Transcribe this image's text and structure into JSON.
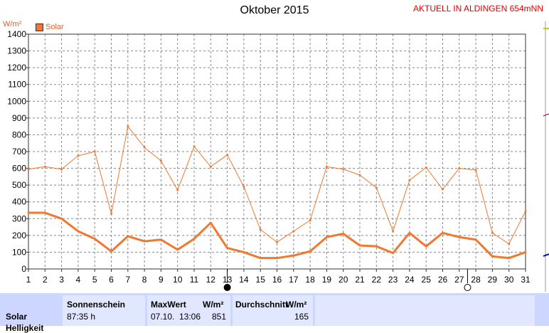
{
  "header": {
    "title": "Oktober 2015",
    "station": "AKTUELL IN ALDINGEN 654mNN"
  },
  "colors": {
    "series": "#f07830",
    "grid": "#888888",
    "station_text": "#e00000",
    "stats_bg": "#ccd6ff",
    "stats_cell": "#e0e7ff"
  },
  "chart_data": {
    "type": "line",
    "unit_label": "W/m²",
    "legend": [
      "Solar"
    ],
    "ylim": [
      0,
      1400
    ],
    "yticks": [
      0,
      100,
      200,
      300,
      400,
      500,
      600,
      700,
      800,
      900,
      1000,
      1100,
      1200,
      1300,
      1400
    ],
    "x": [
      1,
      2,
      3,
      4,
      5,
      6,
      7,
      8,
      9,
      10,
      11,
      12,
      13,
      14,
      15,
      16,
      17,
      18,
      19,
      20,
      21,
      22,
      23,
      24,
      25,
      26,
      27,
      28,
      29,
      30,
      31
    ],
    "grid": true,
    "series": [
      {
        "name": "Solar",
        "role": "max",
        "values": [
          595,
          610,
          595,
          675,
          700,
          330,
          850,
          725,
          645,
          470,
          730,
          610,
          680,
          490,
          235,
          160,
          225,
          290,
          610,
          595,
          560,
          485,
          225,
          530,
          605,
          475,
          600,
          590,
          215,
          150,
          345
        ]
      },
      {
        "name": "Solar",
        "role": "mean",
        "values": [
          335,
          335,
          300,
          225,
          180,
          105,
          195,
          165,
          175,
          115,
          180,
          275,
          125,
          100,
          65,
          65,
          80,
          105,
          190,
          210,
          140,
          135,
          95,
          215,
          135,
          215,
          190,
          175,
          75,
          65,
          100
        ]
      }
    ],
    "moon_markers": [
      {
        "day": 13,
        "phase": "new"
      },
      {
        "day": 27.5,
        "phase": "full"
      }
    ]
  },
  "stats": {
    "row_label": "Solar",
    "row_sublabel": "Helligkeit",
    "sunshine_header": "Sonnenschein",
    "sunshine_value": "87:35 h",
    "max_header": "MaxWert",
    "max_unit": "W/m²",
    "max_date": "07.10.",
    "max_time": "13:06",
    "max_value": "851",
    "avg_header": "Durchschnitt",
    "avg_unit": "W/m²",
    "avg_value": "165"
  }
}
